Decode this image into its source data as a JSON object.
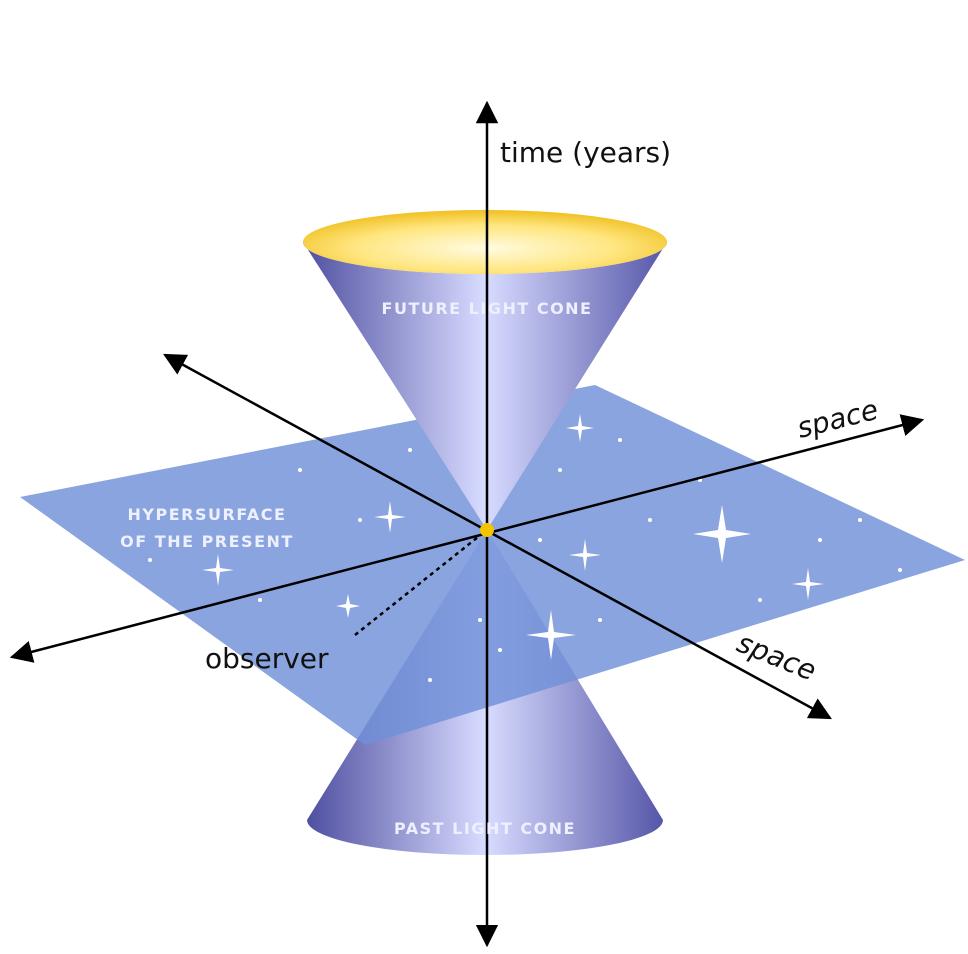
{
  "labels": {
    "time_axis": "time (years)",
    "future_cone": "FUTURE LIGHT CONE",
    "space_axis_right": "space",
    "space_axis_front": "space",
    "hypersurface_line1": "HYPERSURFACE",
    "hypersurface_line2": "OF THE PRESENT",
    "observer": "observer",
    "past_cone": "PAST LIGHT CONE"
  }
}
